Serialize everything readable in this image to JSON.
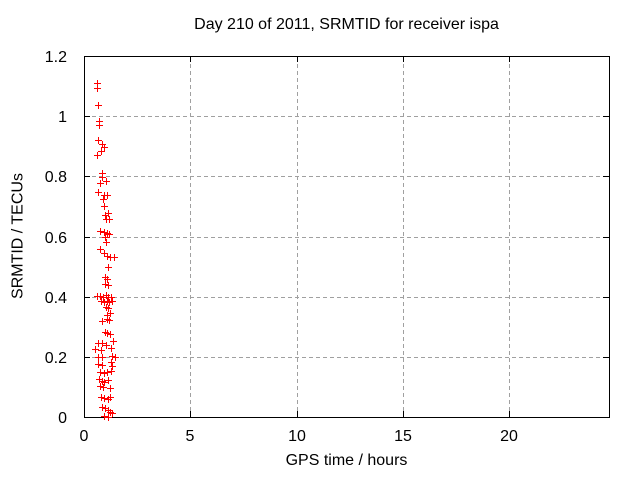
{
  "chart_data": {
    "type": "scatter",
    "title": "Day 210 of 2011, SRMTID for receiver ispa",
    "xlabel": "GPS time / hours",
    "ylabel": "SRMTID / TECUs",
    "xlim": [
      0,
      24.7
    ],
    "ylim": [
      0,
      1.2
    ],
    "xtick_values": [
      0,
      5,
      10,
      15,
      20
    ],
    "xtick_labels": [
      "0",
      "5",
      "10",
      "15",
      "20"
    ],
    "ytick_values": [
      0,
      0.2,
      0.4,
      0.6,
      0.8,
      1,
      1.2
    ],
    "ytick_labels": [
      "0",
      "0.2",
      "0.4",
      "0.6",
      "0.8",
      "1",
      "1.2"
    ],
    "grid": "dashed-major",
    "legend": "none",
    "series": [
      {
        "marker": "plus",
        "marker_size": 7,
        "color": "#ff0000",
        "points": [
          [
            0.61,
            1.11
          ],
          [
            0.61,
            1.094
          ],
          [
            0.66,
            1.037
          ],
          [
            0.71,
            0.983
          ],
          [
            0.71,
            0.971
          ],
          [
            0.66,
            0.921
          ],
          [
            0.85,
            0.908
          ],
          [
            0.94,
            0.898
          ],
          [
            0.8,
            0.884
          ],
          [
            0.61,
            0.871
          ],
          [
            0.85,
            0.811
          ],
          [
            0.85,
            0.798
          ],
          [
            1.03,
            0.785
          ],
          [
            0.75,
            0.778
          ],
          [
            0.66,
            0.748
          ],
          [
            0.94,
            0.738
          ],
          [
            1.08,
            0.738
          ],
          [
            0.89,
            0.725
          ],
          [
            0.94,
            0.701
          ],
          [
            1.13,
            0.678
          ],
          [
            0.99,
            0.672
          ],
          [
            1.03,
            0.658
          ],
          [
            1.18,
            0.658
          ],
          [
            0.75,
            0.618
          ],
          [
            0.94,
            0.615
          ],
          [
            1.08,
            0.612
          ],
          [
            1.18,
            0.608
          ],
          [
            0.99,
            0.598
          ],
          [
            1.03,
            0.582
          ],
          [
            0.75,
            0.559
          ],
          [
            0.94,
            0.545
          ],
          [
            1.08,
            0.535
          ],
          [
            1.22,
            0.532
          ],
          [
            1.41,
            0.532
          ],
          [
            1.13,
            0.499
          ],
          [
            0.99,
            0.465
          ],
          [
            1.08,
            0.459
          ],
          [
            0.99,
            0.442
          ],
          [
            1.13,
            0.439
          ],
          [
            0.61,
            0.402
          ],
          [
            0.75,
            0.402
          ],
          [
            0.89,
            0.399
          ],
          [
            1.03,
            0.406
          ],
          [
            1.13,
            0.399
          ],
          [
            1.27,
            0.399
          ],
          [
            0.8,
            0.386
          ],
          [
            0.94,
            0.382
          ],
          [
            1.08,
            0.386
          ],
          [
            1.18,
            0.382
          ],
          [
            1.32,
            0.386
          ],
          [
            1.03,
            0.366
          ],
          [
            1.13,
            0.362
          ],
          [
            1.22,
            0.346
          ],
          [
            1.08,
            0.339
          ],
          [
            0.85,
            0.319
          ],
          [
            1.08,
            0.326
          ],
          [
            1.18,
            0.322
          ],
          [
            0.99,
            0.283
          ],
          [
            1.08,
            0.279
          ],
          [
            1.22,
            0.276
          ],
          [
            1.36,
            0.253
          ],
          [
            0.66,
            0.246
          ],
          [
            0.85,
            0.246
          ],
          [
            1.03,
            0.239
          ],
          [
            0.52,
            0.226
          ],
          [
            0.8,
            0.223
          ],
          [
            1.27,
            0.229
          ],
          [
            0.66,
            0.199
          ],
          [
            0.85,
            0.199
          ],
          [
            1.32,
            0.203
          ],
          [
            1.46,
            0.199
          ],
          [
            1.27,
            0.183
          ],
          [
            0.66,
            0.176
          ],
          [
            0.85,
            0.173
          ],
          [
            1.32,
            0.17
          ],
          [
            0.75,
            0.15
          ],
          [
            0.94,
            0.146
          ],
          [
            1.08,
            0.15
          ],
          [
            1.27,
            0.153
          ],
          [
            0.71,
            0.126
          ],
          [
            0.85,
            0.12
          ],
          [
            0.94,
            0.116
          ],
          [
            1.13,
            0.123
          ],
          [
            0.75,
            0.103
          ],
          [
            0.89,
            0.1
          ],
          [
            1.22,
            0.096
          ],
          [
            0.8,
            0.066
          ],
          [
            0.94,
            0.063
          ],
          [
            1.13,
            0.06
          ],
          [
            1.22,
            0.066
          ],
          [
            0.85,
            0.033
          ],
          [
            0.99,
            0.03
          ],
          [
            1.13,
            0.023
          ],
          [
            1.22,
            0.017
          ],
          [
            1.32,
            0.013
          ],
          [
            0.94,
            0.003
          ],
          [
            1.13,
            0.0
          ]
        ]
      }
    ]
  },
  "colors": {
    "background": "#ffffff",
    "plot_border": "#000000",
    "grid": "#a0a0a0",
    "text": "#000000",
    "marker": "#ff0000"
  }
}
